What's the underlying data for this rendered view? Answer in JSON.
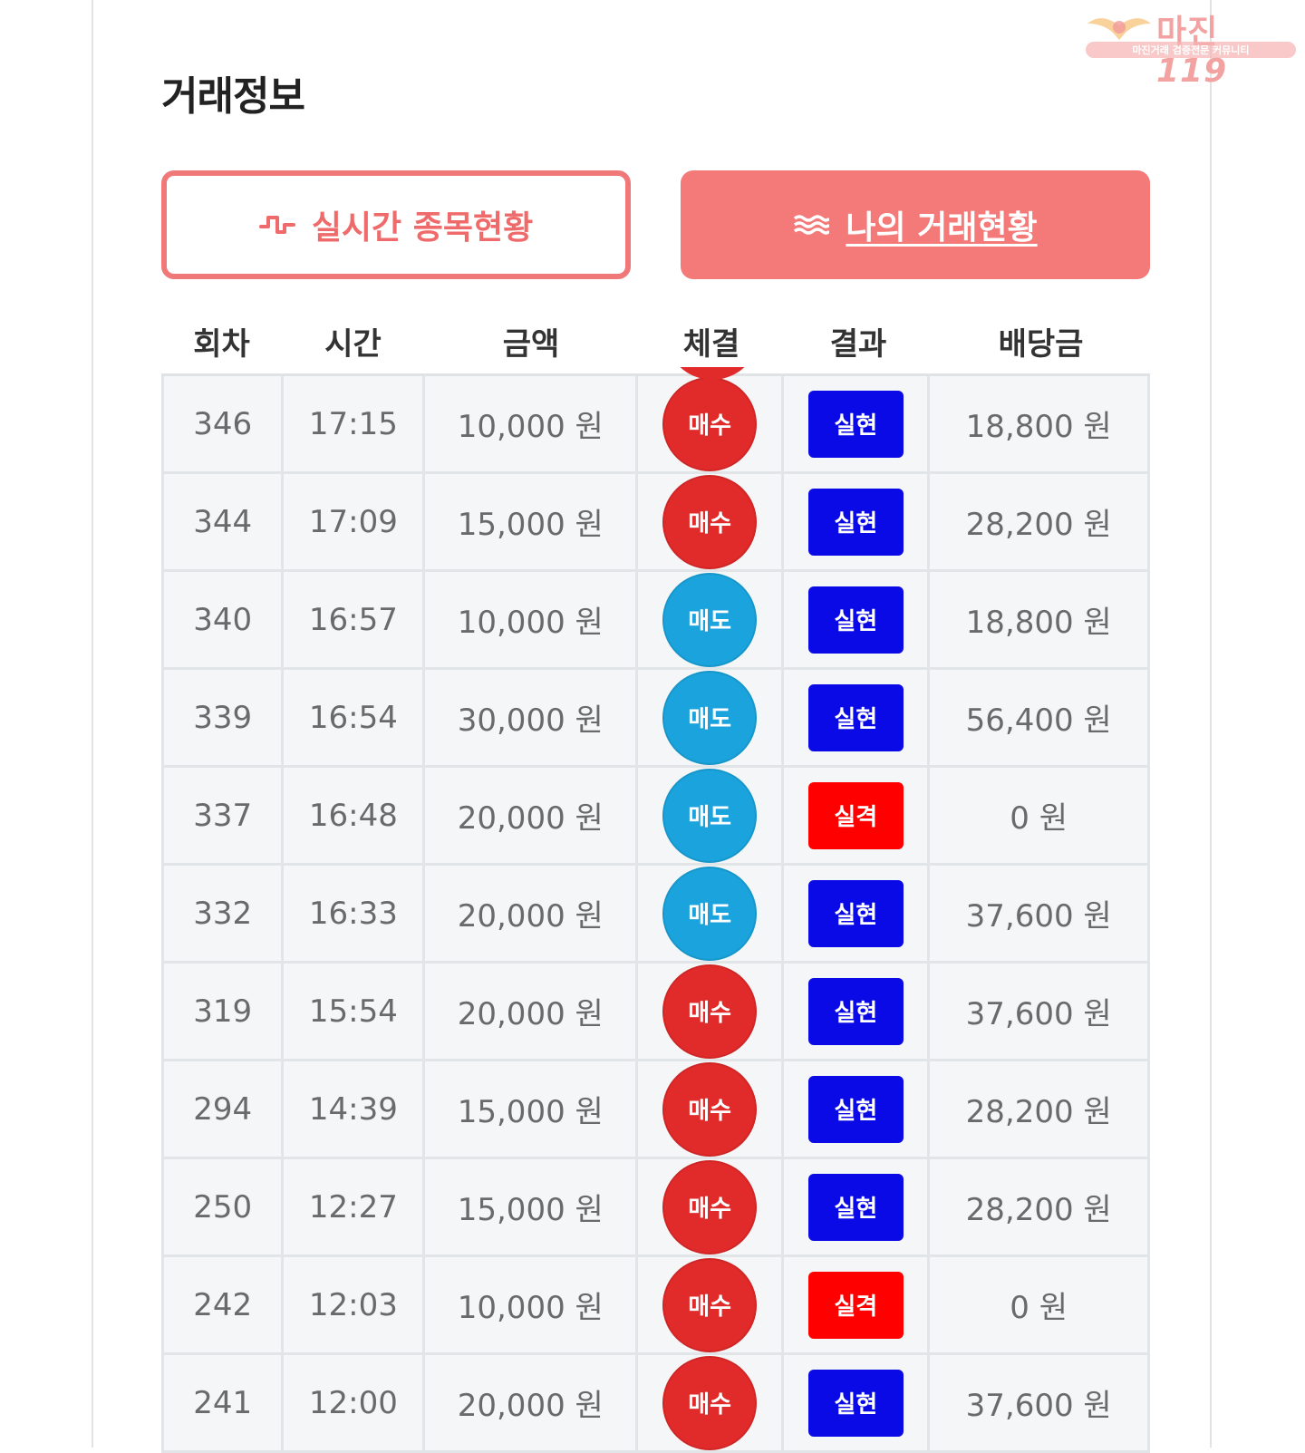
{
  "watermark": {
    "title": "마진",
    "number": "119",
    "subtitle": "마진거래 검증전문 커뮤니티",
    "color": "#f3a2a2"
  },
  "section_title": "거래정보",
  "tabs": [
    {
      "label": "실시간 종목현황",
      "icon": "pulse-icon",
      "active": false
    },
    {
      "label": "나의 거래현황",
      "icon": "wave-icon",
      "active": true
    }
  ],
  "columns": [
    "회차",
    "시간",
    "금액",
    "체결",
    "결과",
    "배당금"
  ],
  "colors": {
    "buy": "#e12a2a",
    "sell": "#1aa3dc",
    "success": "#0a0ae6",
    "fail": "#ff0000",
    "accent": "#f47a7a"
  },
  "rows": [
    {
      "round": "346",
      "time": "17:15",
      "amount": "10,000 원",
      "trade": "매수",
      "trade_type": "buy",
      "result": "실현",
      "result_type": "success",
      "payout": "18,800 원"
    },
    {
      "round": "344",
      "time": "17:09",
      "amount": "15,000 원",
      "trade": "매수",
      "trade_type": "buy",
      "result": "실현",
      "result_type": "success",
      "payout": "28,200 원"
    },
    {
      "round": "340",
      "time": "16:57",
      "amount": "10,000 원",
      "trade": "매도",
      "trade_type": "sell",
      "result": "실현",
      "result_type": "success",
      "payout": "18,800 원"
    },
    {
      "round": "339",
      "time": "16:54",
      "amount": "30,000 원",
      "trade": "매도",
      "trade_type": "sell",
      "result": "실현",
      "result_type": "success",
      "payout": "56,400 원"
    },
    {
      "round": "337",
      "time": "16:48",
      "amount": "20,000 원",
      "trade": "매도",
      "trade_type": "sell",
      "result": "실격",
      "result_type": "fail",
      "payout": "0 원"
    },
    {
      "round": "332",
      "time": "16:33",
      "amount": "20,000 원",
      "trade": "매도",
      "trade_type": "sell",
      "result": "실현",
      "result_type": "success",
      "payout": "37,600 원"
    },
    {
      "round": "319",
      "time": "15:54",
      "amount": "20,000 원",
      "trade": "매수",
      "trade_type": "buy",
      "result": "실현",
      "result_type": "success",
      "payout": "37,600 원"
    },
    {
      "round": "294",
      "time": "14:39",
      "amount": "15,000 원",
      "trade": "매수",
      "trade_type": "buy",
      "result": "실현",
      "result_type": "success",
      "payout": "28,200 원"
    },
    {
      "round": "250",
      "time": "12:27",
      "amount": "15,000 원",
      "trade": "매수",
      "trade_type": "buy",
      "result": "실현",
      "result_type": "success",
      "payout": "28,200 원"
    },
    {
      "round": "242",
      "time": "12:03",
      "amount": "10,000 원",
      "trade": "매수",
      "trade_type": "buy",
      "result": "실격",
      "result_type": "fail",
      "payout": "0 원"
    },
    {
      "round": "241",
      "time": "12:00",
      "amount": "20,000 원",
      "trade": "매수",
      "trade_type": "buy",
      "result": "실현",
      "result_type": "success",
      "payout": "37,600 원"
    }
  ]
}
